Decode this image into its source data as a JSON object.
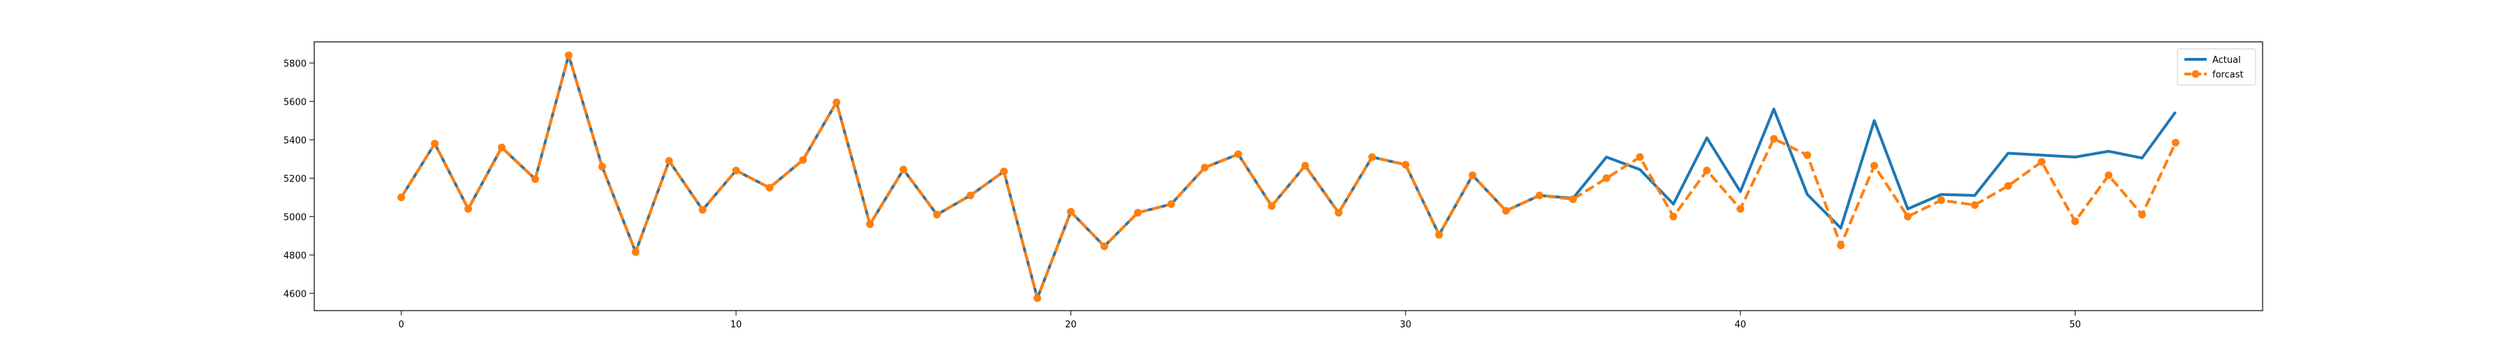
{
  "chart_data": {
    "type": "line",
    "title": "",
    "xlabel": "",
    "ylabel": "",
    "xlim": [
      -2.6,
      55.6
    ],
    "ylim": [
      4510,
      5910
    ],
    "xticks": [
      0,
      10,
      20,
      30,
      40,
      50
    ],
    "xtick_labels": [
      "0",
      "10",
      "20",
      "30",
      "40",
      "50"
    ],
    "yticks": [
      4600,
      4800,
      5000,
      5200,
      5400,
      5600,
      5800
    ],
    "ytick_labels": [
      "4600",
      "4800",
      "5000",
      "5200",
      "5400",
      "5600",
      "5800"
    ],
    "grid": false,
    "legend_position": "upper right",
    "x": [
      0,
      1,
      2,
      3,
      4,
      5,
      6,
      7,
      8,
      9,
      10,
      11,
      12,
      13,
      14,
      15,
      16,
      17,
      18,
      19,
      20,
      21,
      22,
      23,
      24,
      25,
      26,
      27,
      28,
      29,
      30,
      31,
      32,
      33,
      34,
      35,
      36,
      37,
      38,
      39,
      40,
      41,
      42,
      43,
      44,
      45,
      46,
      47,
      48,
      49,
      50,
      51,
      52,
      53
    ],
    "series": [
      {
        "name": "Actual",
        "color": "#1f77b4",
        "style": "solid",
        "marker": "none",
        "values": [
          5100,
          5380,
          5040,
          5360,
          5195,
          5840,
          5260,
          4815,
          5290,
          5035,
          5240,
          5150,
          5295,
          5595,
          4960,
          5245,
          5010,
          5110,
          5235,
          4575,
          5025,
          4845,
          5020,
          5065,
          5255,
          5325,
          5055,
          5265,
          5020,
          5310,
          5270,
          4905,
          5215,
          5030,
          5110,
          5095,
          5310,
          5245,
          5065,
          5410,
          5130,
          5560,
          5115,
          4940,
          5500,
          5040,
          5115,
          5110,
          5330,
          5320,
          5310,
          5340,
          5305,
          5545
        ]
      },
      {
        "name": "forcast",
        "color": "#ff7f0e",
        "style": "dashed",
        "marker": "circle",
        "values": [
          5100,
          5380,
          5040,
          5360,
          5195,
          5840,
          5260,
          4815,
          5290,
          5035,
          5240,
          5150,
          5295,
          5595,
          4960,
          5245,
          5010,
          5110,
          5235,
          4575,
          5025,
          4845,
          5020,
          5065,
          5255,
          5325,
          5055,
          5265,
          5020,
          5310,
          5270,
          4905,
          5215,
          5030,
          5110,
          5090,
          5200,
          5310,
          5000,
          5240,
          5040,
          5405,
          5320,
          4850,
          5265,
          5000,
          5085,
          5060,
          5160,
          5285,
          4975,
          5215,
          5010,
          5385
        ]
      }
    ]
  }
}
